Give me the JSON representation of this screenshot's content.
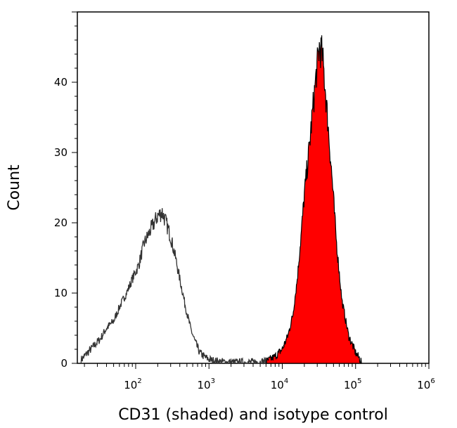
{
  "chart_data": {
    "type": "area",
    "title": "",
    "xlabel": "CD31 (shaded) and isotype control",
    "ylabel": "Count",
    "x_scale": "log",
    "xlim": [
      16,
      1000000
    ],
    "ylim": [
      0,
      50
    ],
    "x_ticks": [
      {
        "base": "10",
        "exp": "2",
        "value": 100
      },
      {
        "base": "10",
        "exp": "3",
        "value": 1000
      },
      {
        "base": "10",
        "exp": "4",
        "value": 10000
      },
      {
        "base": "10",
        "exp": "5",
        "value": 100000
      },
      {
        "base": "10",
        "exp": "6",
        "value": 1000000
      }
    ],
    "y_ticks": [
      0,
      10,
      20,
      30,
      40
    ],
    "grid": false,
    "series": [
      {
        "style": "outline",
        "color": "#333333",
        "points": [
          [
            18,
            0.5
          ],
          [
            22,
            1.5
          ],
          [
            27,
            2.5
          ],
          [
            33,
            3.5
          ],
          [
            40,
            5
          ],
          [
            50,
            6
          ],
          [
            60,
            8
          ],
          [
            75,
            10
          ],
          [
            90,
            12
          ],
          [
            110,
            14
          ],
          [
            130,
            17
          ],
          [
            160,
            19
          ],
          [
            200,
            21
          ],
          [
            230,
            21.5
          ],
          [
            260,
            20
          ],
          [
            300,
            18
          ],
          [
            350,
            15
          ],
          [
            400,
            12
          ],
          [
            480,
            8
          ],
          [
            560,
            5
          ],
          [
            650,
            3
          ],
          [
            750,
            1.5
          ],
          [
            900,
            0.8
          ],
          [
            1100,
            0.4
          ],
          [
            1500,
            0.2
          ],
          [
            2500,
            0.1
          ],
          [
            5000,
            0.2
          ],
          [
            7000,
            0.3
          ]
        ]
      },
      {
        "style": "filled",
        "color": "#ff0000",
        "points": [
          [
            6000,
            0.2
          ],
          [
            8000,
            1
          ],
          [
            10000,
            2
          ],
          [
            12000,
            4
          ],
          [
            14000,
            7
          ],
          [
            16000,
            12
          ],
          [
            18000,
            18
          ],
          [
            20000,
            24
          ],
          [
            23000,
            30
          ],
          [
            26000,
            36
          ],
          [
            29000,
            41
          ],
          [
            32000,
            45
          ],
          [
            35000,
            44
          ],
          [
            38000,
            40
          ],
          [
            42000,
            34
          ],
          [
            48000,
            26
          ],
          [
            55000,
            17
          ],
          [
            65000,
            9
          ],
          [
            80000,
            4
          ],
          [
            100000,
            1.5
          ],
          [
            120000,
            0.3
          ]
        ]
      }
    ]
  }
}
